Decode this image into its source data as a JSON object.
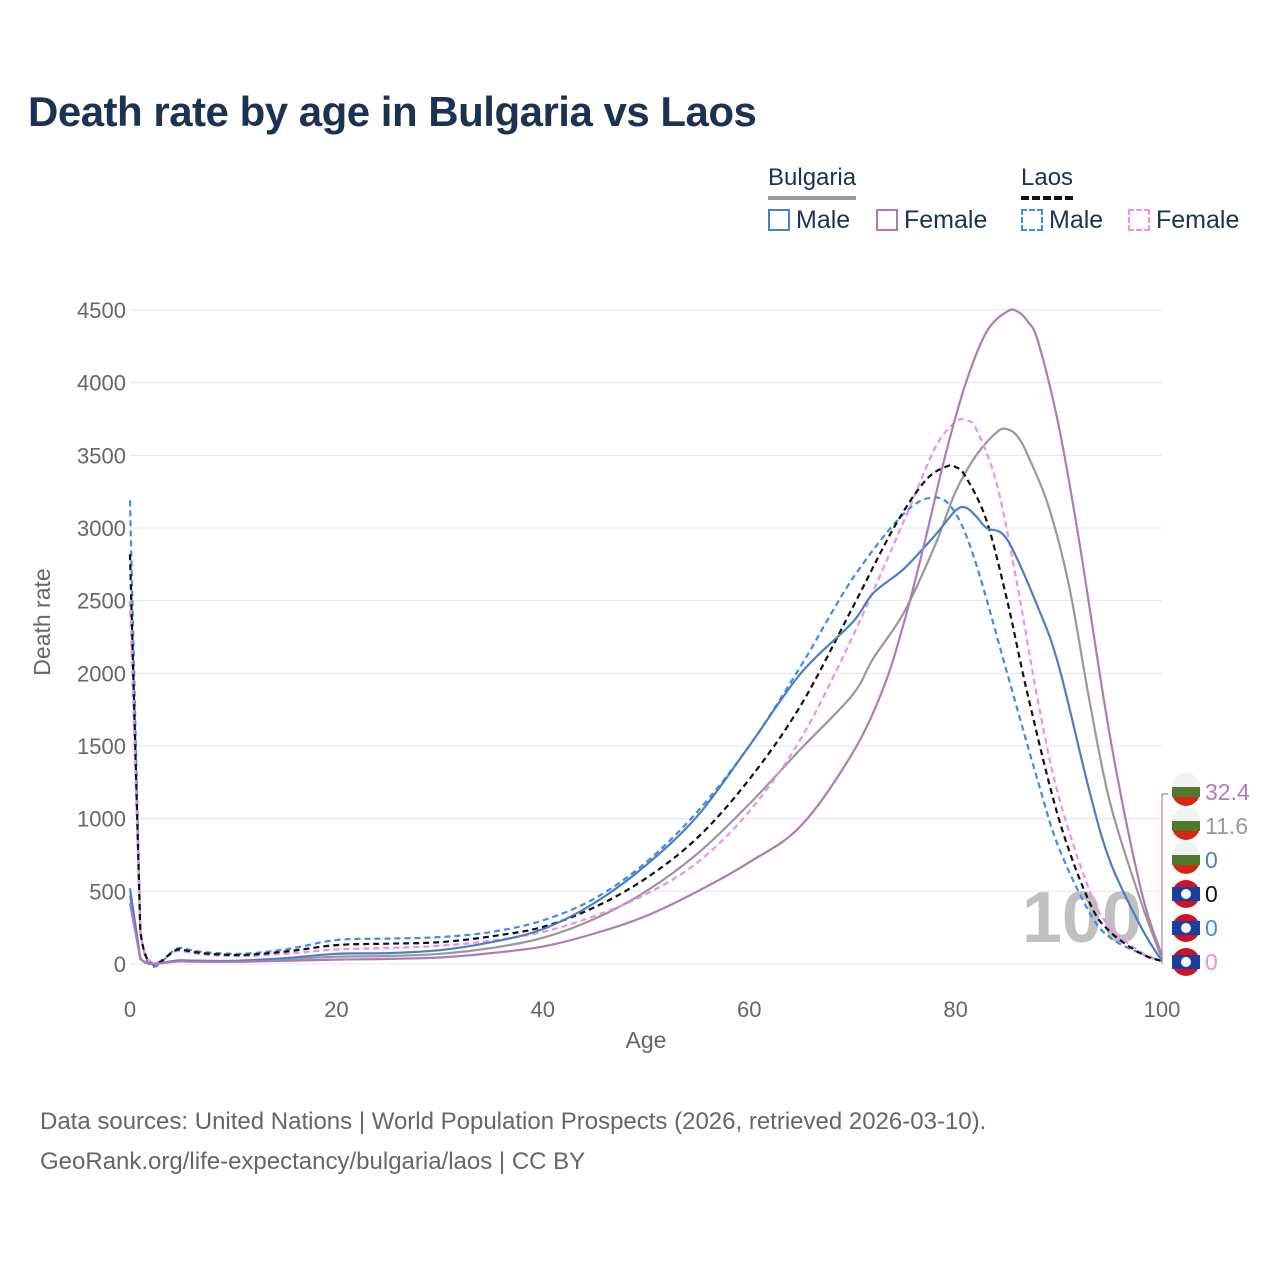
{
  "title": "Death rate by age in Bulgaria vs Laos",
  "legend": {
    "groups": [
      {
        "name": "Bulgaria",
        "marker_color": "#999999",
        "marker_style": "solid",
        "items": [
          {
            "label": "Male",
            "color": "#4a7fc8",
            "style": "solid"
          },
          {
            "label": "Female",
            "color": "#b07ab6",
            "style": "solid"
          }
        ]
      },
      {
        "name": "Laos",
        "marker_color": "#111111",
        "marker_style": "dashed",
        "items": [
          {
            "label": "Male",
            "color": "#3d8ee8",
            "style": "dashed"
          },
          {
            "label": "Female",
            "color": "#f28de8",
            "style": "dashed"
          }
        ]
      }
    ]
  },
  "source_lines": [
    "Data sources: United Nations | World Population Prospects (2026, retrieved 2026-03-10).",
    "GeoRank.org/life-expectancy/bulgaria/laos | CC BY"
  ],
  "chart_data": {
    "type": "line",
    "xlabel": "Age",
    "ylabel": "Death rate",
    "xlim": [
      0,
      100
    ],
    "ylim": [
      0,
      4500
    ],
    "xticks": [
      0,
      20,
      40,
      60,
      80,
      100
    ],
    "yticks": [
      0,
      500,
      1000,
      1500,
      2000,
      2500,
      3000,
      3500,
      4000,
      4500
    ],
    "grid": true,
    "watermark": "100",
    "series": [
      {
        "name": "Bulgaria Male",
        "color": "#4a7fc8",
        "dash": "solid",
        "points": [
          [
            0,
            520
          ],
          [
            1,
            40
          ],
          [
            5,
            25
          ],
          [
            10,
            22
          ],
          [
            15,
            40
          ],
          [
            20,
            70
          ],
          [
            25,
            75
          ],
          [
            30,
            95
          ],
          [
            35,
            150
          ],
          [
            40,
            240
          ],
          [
            45,
            420
          ],
          [
            50,
            680
          ],
          [
            55,
            1020
          ],
          [
            60,
            1500
          ],
          [
            65,
            2000
          ],
          [
            70,
            2350
          ],
          [
            72,
            2550
          ],
          [
            75,
            2720
          ],
          [
            78,
            2950
          ],
          [
            80,
            3120
          ],
          [
            81,
            3140
          ],
          [
            82,
            3080
          ],
          [
            83,
            3000
          ],
          [
            85,
            2920
          ],
          [
            88,
            2450
          ],
          [
            90,
            2050
          ],
          [
            93,
            1180
          ],
          [
            95,
            700
          ],
          [
            98,
            250
          ],
          [
            100,
            20
          ]
        ]
      },
      {
        "name": "Bulgaria Female",
        "color": "#b07ab6",
        "dash": "solid",
        "points": [
          [
            0,
            420
          ],
          [
            1,
            35
          ],
          [
            5,
            18
          ],
          [
            10,
            15
          ],
          [
            15,
            22
          ],
          [
            20,
            30
          ],
          [
            25,
            35
          ],
          [
            30,
            45
          ],
          [
            35,
            75
          ],
          [
            40,
            120
          ],
          [
            45,
            210
          ],
          [
            50,
            330
          ],
          [
            55,
            500
          ],
          [
            60,
            700
          ],
          [
            65,
            950
          ],
          [
            70,
            1450
          ],
          [
            73,
            1900
          ],
          [
            75,
            2350
          ],
          [
            77,
            2900
          ],
          [
            79,
            3500
          ],
          [
            81,
            4000
          ],
          [
            83,
            4350
          ],
          [
            85,
            4490
          ],
          [
            86,
            4490
          ],
          [
            87,
            4420
          ],
          [
            88,
            4280
          ],
          [
            90,
            3700
          ],
          [
            92,
            2900
          ],
          [
            95,
            1550
          ],
          [
            98,
            500
          ],
          [
            100,
            60
          ]
        ]
      },
      {
        "name": "Bulgaria Total",
        "color": "#999999",
        "dash": "solid",
        "points": [
          [
            0,
            470
          ],
          [
            1,
            38
          ],
          [
            5,
            22
          ],
          [
            10,
            19
          ],
          [
            15,
            32
          ],
          [
            20,
            50
          ],
          [
            25,
            55
          ],
          [
            30,
            70
          ],
          [
            35,
            110
          ],
          [
            40,
            180
          ],
          [
            45,
            310
          ],
          [
            50,
            500
          ],
          [
            55,
            760
          ],
          [
            60,
            1100
          ],
          [
            65,
            1480
          ],
          [
            70,
            1850
          ],
          [
            72,
            2100
          ],
          [
            75,
            2420
          ],
          [
            78,
            2880
          ],
          [
            80,
            3250
          ],
          [
            82,
            3500
          ],
          [
            84,
            3660
          ],
          [
            85,
            3680
          ],
          [
            86,
            3630
          ],
          [
            87,
            3500
          ],
          [
            89,
            3150
          ],
          [
            91,
            2600
          ],
          [
            93,
            1800
          ],
          [
            95,
            1100
          ],
          [
            98,
            420
          ],
          [
            100,
            35
          ]
        ]
      },
      {
        "name": "Laos Male",
        "color": "#3d8ee8",
        "dash": "dashed",
        "points": [
          [
            0,
            3190
          ],
          [
            1,
            240
          ],
          [
            5,
            110
          ],
          [
            10,
            70
          ],
          [
            15,
            100
          ],
          [
            20,
            165
          ],
          [
            25,
            175
          ],
          [
            30,
            185
          ],
          [
            35,
            220
          ],
          [
            40,
            300
          ],
          [
            45,
            450
          ],
          [
            50,
            700
          ],
          [
            55,
            1050
          ],
          [
            60,
            1500
          ],
          [
            65,
            2050
          ],
          [
            70,
            2650
          ],
          [
            75,
            3100
          ],
          [
            78,
            3210
          ],
          [
            80,
            3100
          ],
          [
            82,
            2750
          ],
          [
            85,
            2000
          ],
          [
            88,
            1250
          ],
          [
            90,
            800
          ],
          [
            93,
            350
          ],
          [
            95,
            180
          ],
          [
            98,
            70
          ],
          [
            100,
            20
          ]
        ]
      },
      {
        "name": "Laos Female",
        "color": "#f28de8",
        "dash": "dashed",
        "points": [
          [
            0,
            2500
          ],
          [
            1,
            220
          ],
          [
            5,
            90
          ],
          [
            10,
            55
          ],
          [
            15,
            70
          ],
          [
            20,
            100
          ],
          [
            25,
            110
          ],
          [
            30,
            125
          ],
          [
            35,
            160
          ],
          [
            40,
            220
          ],
          [
            45,
            330
          ],
          [
            50,
            480
          ],
          [
            55,
            700
          ],
          [
            60,
            1050
          ],
          [
            65,
            1550
          ],
          [
            70,
            2250
          ],
          [
            75,
            3050
          ],
          [
            78,
            3550
          ],
          [
            80,
            3730
          ],
          [
            81,
            3740
          ],
          [
            82,
            3680
          ],
          [
            84,
            3300
          ],
          [
            86,
            2600
          ],
          [
            88,
            1800
          ],
          [
            90,
            1150
          ],
          [
            93,
            500
          ],
          [
            95,
            250
          ],
          [
            98,
            80
          ],
          [
            100,
            20
          ]
        ]
      },
      {
        "name": "Laos Total",
        "color": "#111111",
        "dash": "dashed",
        "points": [
          [
            0,
            2820
          ],
          [
            1,
            230
          ],
          [
            5,
            100
          ],
          [
            10,
            62
          ],
          [
            15,
            85
          ],
          [
            20,
            130
          ],
          [
            25,
            140
          ],
          [
            30,
            150
          ],
          [
            35,
            190
          ],
          [
            40,
            255
          ],
          [
            45,
            390
          ],
          [
            50,
            590
          ],
          [
            55,
            870
          ],
          [
            60,
            1270
          ],
          [
            65,
            1780
          ],
          [
            70,
            2450
          ],
          [
            74,
            3000
          ],
          [
            77,
            3320
          ],
          [
            79,
            3420
          ],
          [
            80,
            3420
          ],
          [
            81,
            3350
          ],
          [
            83,
            3050
          ],
          [
            85,
            2500
          ],
          [
            87,
            1850
          ],
          [
            90,
            1000
          ],
          [
            93,
            420
          ],
          [
            95,
            220
          ],
          [
            98,
            70
          ],
          [
            100,
            20
          ]
        ]
      }
    ],
    "end_labels": [
      {
        "country": "Bulgaria",
        "value": "32.4",
        "color": "#b07ab6"
      },
      {
        "country": "Bulgaria",
        "value": "11.6",
        "color": "#999999"
      },
      {
        "country": "Bulgaria",
        "value": "0",
        "color": "#4a7fc8"
      },
      {
        "country": "Laos",
        "value": "0",
        "color": "#111111"
      },
      {
        "country": "Laos",
        "value": "0",
        "color": "#3d8ee8"
      },
      {
        "country": "Laos",
        "value": "0",
        "color": "#f28de8"
      }
    ]
  }
}
